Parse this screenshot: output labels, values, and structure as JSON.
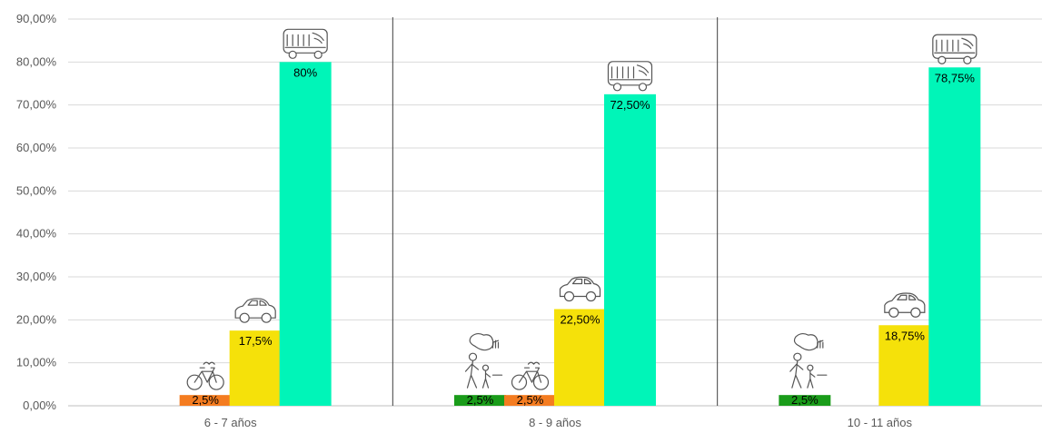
{
  "chart_data": {
    "type": "bar",
    "categories": [
      "6 - 7 años",
      "8 - 9 años",
      "10 - 11 años"
    ],
    "ylim": [
      0,
      90
    ],
    "y_ticks": [
      "0,00%",
      "10,00%",
      "20,00%",
      "30,00%",
      "40,00%",
      "50,00%",
      "60,00%",
      "70,00%",
      "80,00%",
      "90,00%"
    ],
    "y_tick_values": [
      0,
      10,
      20,
      30,
      40,
      50,
      60,
      70,
      80,
      90
    ],
    "grid": true,
    "legend": "none",
    "series": [
      {
        "icon": "walking-person-icon",
        "color": "#1a9c1a",
        "values": [
          null,
          2.5,
          2.5
        ],
        "labels": [
          "",
          "2,5%",
          "2,5%"
        ]
      },
      {
        "icon": "bicycle-icon",
        "color": "#f47c20",
        "values": [
          2.5,
          2.5,
          null
        ],
        "labels": [
          "2,5%",
          "2,5%",
          ""
        ]
      },
      {
        "icon": "car-icon",
        "color": "#f5e10a",
        "values": [
          17.5,
          22.5,
          18.75
        ],
        "labels": [
          "17,5%",
          "22,50%",
          "18,75%"
        ]
      },
      {
        "icon": "bus-icon",
        "color": "#00f5b8",
        "values": [
          80,
          72.5,
          78.75
        ],
        "labels": [
          "80%",
          "72,50%",
          "78,75%"
        ]
      }
    ]
  }
}
